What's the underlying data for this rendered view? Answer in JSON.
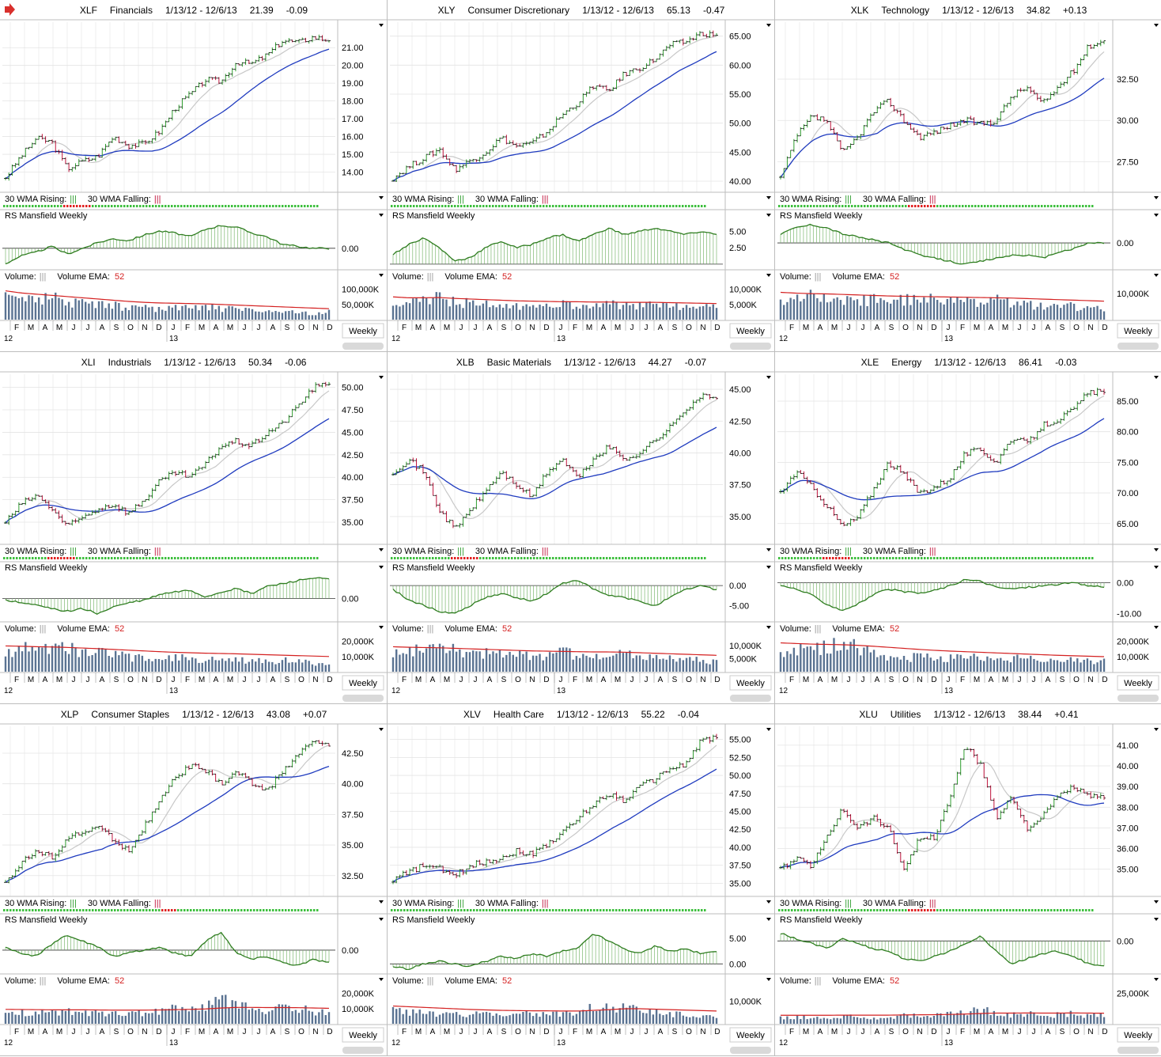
{
  "common": {
    "date_range": "1/13/12 - 12/6/13",
    "wma_rising_label": "30 WMA Rising:",
    "wma_falling_label": "30 WMA Falling:",
    "wma_marker": "|||",
    "rs_label": "RS Mansfield Weekly",
    "volume_label": "Volume:",
    "volume_marker": "|||",
    "volume_ema_label": "Volume EMA:",
    "volume_ema_value": "52",
    "period_button": "Weekly",
    "month_ticks": [
      "F",
      "M",
      "A",
      "M",
      "J",
      "J",
      "A",
      "S",
      "O",
      "N",
      "D",
      "J",
      "F",
      "M",
      "A",
      "M",
      "J",
      "J",
      "A",
      "S",
      "O",
      "N",
      "D"
    ],
    "year_labels": [
      "12",
      "13"
    ],
    "colors": {
      "up": "#2e9d2e",
      "down": "#c0143c",
      "rs": "#2e7d1f",
      "volume": "#5a7392",
      "ema": "#d42020",
      "wma30": "#1f3bbf",
      "wma10": "#c8c8c8",
      "grid": "#e4e4e4",
      "panel_border": "#bdbdbd",
      "alert_arrow": "#d9302c"
    }
  },
  "chart_data": [
    {
      "type": "line",
      "ticker": "XLF",
      "name": "Financials",
      "last": "21.39",
      "change": "-0.09",
      "alert_arrow": true,
      "price": [
        13.7,
        14.9,
        15.9,
        15.7,
        14.2,
        14.6,
        14.9,
        16.0,
        15.5,
        15.6,
        16.3,
        17.6,
        18.4,
        19.2,
        19.1,
        20.2,
        20.1,
        20.6,
        21.4,
        21.3,
        21.6,
        21.39
      ],
      "price_ticks": [
        "14.00",
        "15.00",
        "16.00",
        "17.00",
        "18.00",
        "19.00",
        "20.00",
        "21.00"
      ],
      "price_range": [
        13.0,
        22.3
      ],
      "rs": [
        -8.0,
        -4.0,
        -2.0,
        1.0,
        -3.0,
        0.0,
        3.0,
        5.0,
        4.0,
        7.0,
        9.0,
        8.0,
        6.0,
        10.0,
        12.0,
        11.0,
        8.0,
        6.0,
        2.0,
        1.0,
        0.0,
        0.0
      ],
      "rs_ticks": [
        "0.00"
      ],
      "rs_range": [
        -10.0,
        14.0
      ],
      "volume": [
        85,
        95,
        80,
        90,
        70,
        75,
        60,
        55,
        50,
        45,
        40,
        45,
        50,
        55,
        45,
        40,
        35,
        35,
        30,
        28,
        25,
        30
      ],
      "volume_ticks": [
        "50,000K",
        "100,000K"
      ],
      "volume_range": [
        0,
        120
      ],
      "ema": [
        95,
        88,
        84,
        80,
        76,
        72,
        68,
        64,
        60,
        57,
        55,
        54,
        53,
        52,
        50,
        48,
        46,
        44,
        42,
        40,
        38,
        36
      ],
      "wma": [
        1,
        1,
        1,
        1,
        0,
        0,
        1,
        1,
        1,
        1,
        1,
        1,
        1,
        1,
        1,
        1,
        1,
        1,
        1,
        1,
        1,
        1
      ]
    },
    {
      "type": "line",
      "ticker": "XLY",
      "name": "Consumer Discretionary",
      "last": "65.13",
      "change": "-0.47",
      "price": [
        40.5,
        42.5,
        44.0,
        45.5,
        42.0,
        43.5,
        45.0,
        47.5,
        46.0,
        46.5,
        48.5,
        51.5,
        53.5,
        56.5,
        55.5,
        58.5,
        59.5,
        61.0,
        63.5,
        64.0,
        65.5,
        65.13
      ],
      "price_ticks": [
        "40.00",
        "45.00",
        "50.00",
        "55.00",
        "60.00",
        "65.00"
      ],
      "price_range": [
        38.5,
        67.0
      ],
      "rs": [
        1.5,
        3.0,
        4.0,
        2.5,
        0.5,
        1.0,
        2.5,
        3.5,
        2.5,
        3.0,
        4.0,
        4.5,
        3.5,
        4.5,
        5.5,
        4.5,
        5.0,
        5.5,
        5.0,
        4.5,
        5.0,
        4.5
      ],
      "rs_ticks": [
        "2.50",
        "5.00"
      ],
      "rs_range": [
        -0.5,
        6.5
      ],
      "volume": [
        5.0,
        6.5,
        8.0,
        9.0,
        7.0,
        6.5,
        6.0,
        5.5,
        5.0,
        5.5,
        5.0,
        6.0,
        5.5,
        5.0,
        6.0,
        5.5,
        6.0,
        5.5,
        5.0,
        5.5,
        5.0,
        4.5
      ],
      "volume_ticks": [
        "5,000K",
        "10,000K"
      ],
      "volume_range": [
        0,
        12
      ],
      "ema": [
        7.5,
        7.2,
        7.2,
        7.3,
        7.0,
        6.8,
        6.6,
        6.4,
        6.2,
        6.1,
        6.0,
        5.9,
        5.9,
        5.8,
        5.8,
        5.7,
        5.7,
        5.7,
        5.6,
        5.5,
        5.4,
        5.3
      ],
      "wma": [
        1,
        1,
        1,
        1,
        1,
        1,
        1,
        1,
        1,
        1,
        1,
        1,
        1,
        1,
        1,
        1,
        1,
        1,
        1,
        1,
        1,
        1
      ]
    },
    {
      "type": "line",
      "ticker": "XLK",
      "name": "Technology",
      "last": "34.82",
      "change": "+0.13",
      "price": [
        26.5,
        29.0,
        30.2,
        30.0,
        28.0,
        29.0,
        30.5,
        31.2,
        30.0,
        29.0,
        29.3,
        29.7,
        30.0,
        29.8,
        30.0,
        31.5,
        32.0,
        31.0,
        32.0,
        33.0,
        34.5,
        34.82
      ],
      "price_ticks": [
        "27.50",
        "30.00",
        "32.50"
      ],
      "price_range": [
        25.8,
        35.8
      ],
      "rs": [
        1.5,
        2.5,
        3.0,
        2.5,
        1.5,
        1.0,
        0.5,
        0.0,
        -1.0,
        -2.0,
        -2.5,
        -3.0,
        -3.5,
        -3.0,
        -2.5,
        -2.0,
        -2.0,
        -2.5,
        -1.5,
        -1.0,
        0.0,
        0.0
      ],
      "rs_ticks": [
        "0.00"
      ],
      "rs_range": [
        -4.0,
        3.5
      ],
      "volume": [
        10,
        11,
        12,
        11,
        10,
        9,
        9,
        8,
        9,
        10,
        9,
        8,
        9,
        8,
        9,
        8,
        7,
        6,
        7,
        6,
        5,
        5
      ],
      "volume_ticks": [
        "10,000K"
      ],
      "volume_range": [
        0,
        14
      ],
      "ema": [
        10.5,
        10.2,
        10.0,
        9.9,
        9.7,
        9.5,
        9.3,
        9.1,
        9.0,
        8.9,
        8.8,
        8.7,
        8.6,
        8.5,
        8.4,
        8.3,
        8.1,
        7.9,
        7.7,
        7.5,
        7.3,
        7.1
      ],
      "wma": [
        1,
        1,
        1,
        1,
        1,
        1,
        1,
        1,
        1,
        0,
        0,
        1,
        1,
        1,
        1,
        1,
        1,
        1,
        1,
        1,
        1,
        1
      ]
    },
    {
      "type": "line",
      "ticker": "XLI",
      "name": "Industrials",
      "last": "50.34",
      "change": "-0.06",
      "price": [
        35.0,
        37.0,
        38.0,
        36.5,
        34.5,
        35.5,
        36.5,
        37.0,
        36.0,
        37.5,
        39.5,
        40.5,
        40.0,
        41.5,
        43.5,
        44.0,
        43.5,
        45.0,
        46.0,
        48.0,
        50.0,
        50.34
      ],
      "price_ticks": [
        "35.00",
        "37.50",
        "40.00",
        "42.50",
        "45.00",
        "47.50",
        "50.00"
      ],
      "price_range": [
        32.8,
        51.2
      ],
      "rs": [
        -0.2,
        -0.5,
        -0.8,
        -1.2,
        -1.5,
        -1.2,
        -1.8,
        -1.0,
        -0.5,
        -0.2,
        0.5,
        0.8,
        1.0,
        0.2,
        0.8,
        1.2,
        0.6,
        1.5,
        1.8,
        2.2,
        2.5,
        2.3
      ],
      "rs_ticks": [
        "0.00"
      ],
      "rs_range": [
        -2.5,
        3.0
      ],
      "volume": [
        16,
        18,
        20,
        19,
        18,
        17,
        15,
        13,
        12,
        11,
        10,
        11,
        10,
        9,
        11,
        10,
        9,
        8,
        9,
        8,
        7,
        7
      ],
      "volume_ticks": [
        "10,000K",
        "20,000K"
      ],
      "volume_range": [
        0,
        24
      ],
      "ema": [
        17,
        16.8,
        16.5,
        16.3,
        16.0,
        15.6,
        15.2,
        14.7,
        14.2,
        13.7,
        13.2,
        12.8,
        12.5,
        12.2,
        12.0,
        11.8,
        11.5,
        11.2,
        10.9,
        10.6,
        10.3,
        10.0
      ],
      "wma": [
        1,
        1,
        1,
        0,
        0,
        1,
        1,
        1,
        1,
        1,
        1,
        1,
        1,
        1,
        1,
        1,
        1,
        1,
        1,
        1,
        1,
        1
      ]
    },
    {
      "type": "line",
      "ticker": "XLB",
      "name": "Basic Materials",
      "last": "44.27",
      "change": "-0.07",
      "price": [
        38.5,
        39.5,
        38.5,
        35.5,
        34.0,
        35.5,
        37.0,
        38.5,
        37.5,
        36.5,
        38.5,
        39.5,
        38.0,
        39.5,
        40.5,
        39.5,
        40.0,
        41.0,
        42.0,
        43.5,
        44.5,
        44.27
      ],
      "price_ticks": [
        "35.00",
        "37.50",
        "40.00",
        "42.50",
        "45.00"
      ],
      "price_range": [
        33.0,
        46.0
      ],
      "rs": [
        -1.0,
        -3.5,
        -5.0,
        -6.5,
        -7.0,
        -5.0,
        -3.0,
        -2.0,
        -3.0,
        -4.0,
        -2.0,
        0.5,
        1.5,
        -1.0,
        -2.5,
        -3.0,
        -4.0,
        -5.0,
        -3.0,
        -1.0,
        0.0,
        -1.0
      ],
      "rs_ticks": [
        "0.00",
        "-5.00"
      ],
      "rs_range": [
        -8.5,
        3.0
      ],
      "volume": [
        9,
        10,
        11,
        12,
        10,
        9,
        9,
        8,
        8,
        7,
        8,
        9,
        8,
        7,
        10,
        8,
        7,
        6,
        7,
        6,
        5,
        5
      ],
      "volume_ticks": [
        "5,000K",
        "10,000K"
      ],
      "volume_range": [
        0,
        14
      ],
      "ema": [
        9.6,
        9.4,
        9.3,
        9.2,
        9.0,
        8.8,
        8.6,
        8.4,
        8.2,
        8.0,
        7.9,
        7.8,
        7.7,
        7.6,
        7.6,
        7.5,
        7.3,
        7.1,
        6.9,
        6.7,
        6.5,
        6.3
      ],
      "wma": [
        1,
        1,
        1,
        1,
        0,
        0,
        1,
        1,
        1,
        1,
        1,
        1,
        1,
        1,
        1,
        1,
        1,
        1,
        1,
        1,
        1,
        1
      ]
    },
    {
      "type": "line",
      "ticker": "XLE",
      "name": "Energy",
      "last": "86.41",
      "change": "-0.03",
      "price": [
        70.0,
        73.5,
        71.0,
        68.0,
        64.5,
        66.0,
        70.5,
        75.0,
        73.0,
        70.0,
        71.0,
        72.5,
        76.5,
        77.0,
        75.0,
        79.0,
        78.0,
        81.0,
        82.0,
        83.5,
        86.5,
        86.41
      ],
      "price_ticks": [
        "65.00",
        "70.00",
        "75.00",
        "80.00",
        "85.00"
      ],
      "price_range": [
        62.0,
        89.0
      ],
      "rs": [
        -1.0,
        -2.0,
        -4.0,
        -7.0,
        -9.0,
        -7.0,
        -4.0,
        -2.0,
        -3.0,
        -3.5,
        -2.5,
        -1.0,
        1.0,
        0.5,
        -1.5,
        -2.0,
        -1.5,
        -1.0,
        -0.5,
        0.0,
        -1.0,
        -1.2
      ],
      "rs_ticks": [
        "0.00",
        "-10.00"
      ],
      "rs_range": [
        -12.0,
        3.0
      ],
      "volume": [
        17,
        16,
        18,
        20,
        22,
        19,
        15,
        13,
        12,
        11,
        12,
        11,
        12,
        11,
        10,
        11,
        10,
        9,
        8,
        9,
        8,
        8
      ],
      "volume_ticks": [
        "10,000K",
        "20,000K"
      ],
      "volume_range": [
        0,
        24
      ],
      "ema": [
        19,
        18.6,
        18.2,
        18.0,
        17.8,
        17.4,
        16.8,
        16.1,
        15.4,
        14.7,
        14.1,
        13.6,
        13.2,
        12.8,
        12.4,
        12.0,
        11.6,
        11.2,
        10.8,
        10.5,
        10.2,
        9.9
      ],
      "wma": [
        1,
        1,
        1,
        0,
        0,
        1,
        1,
        1,
        1,
        1,
        1,
        1,
        1,
        1,
        1,
        1,
        1,
        1,
        1,
        1,
        1,
        1
      ]
    },
    {
      "type": "line",
      "ticker": "XLP",
      "name": "Consumer Staples",
      "last": "43.08",
      "change": "+0.07",
      "price": [
        32.0,
        33.5,
        34.5,
        34.0,
        35.5,
        36.0,
        36.5,
        35.5,
        34.5,
        36.5,
        38.5,
        40.5,
        41.5,
        41.0,
        40.0,
        41.0,
        40.0,
        39.5,
        41.0,
        42.5,
        43.5,
        43.08
      ],
      "price_ticks": [
        "32.50",
        "35.00",
        "37.50",
        "40.00",
        "42.50"
      ],
      "price_range": [
        31.0,
        44.5
      ],
      "rs": [
        0.5,
        -0.5,
        -1.0,
        1.0,
        2.5,
        1.5,
        0.5,
        -1.0,
        -0.5,
        0.0,
        0.5,
        -0.5,
        -1.0,
        1.5,
        3.0,
        -0.5,
        -1.5,
        -1.0,
        -2.0,
        -2.5,
        -1.5,
        -2.0
      ],
      "rs_ticks": [
        "0.00"
      ],
      "rs_range": [
        -3.5,
        4.0
      ],
      "volume": [
        8,
        9,
        8,
        9,
        10,
        9,
        8,
        8,
        9,
        8,
        10,
        12,
        11,
        13,
        18,
        16,
        12,
        11,
        13,
        12,
        10,
        9
      ],
      "volume_ticks": [
        "10,000K",
        "20,000K"
      ],
      "volume_range": [
        0,
        24
      ],
      "ema": [
        9.5,
        9.4,
        9.3,
        9.2,
        9.2,
        9.2,
        9.1,
        9.0,
        9.0,
        9.0,
        9.1,
        9.3,
        9.5,
        9.8,
        10.4,
        10.8,
        10.8,
        10.7,
        10.7,
        10.6,
        10.4,
        10.2
      ],
      "wma": [
        1,
        1,
        1,
        1,
        1,
        1,
        1,
        1,
        1,
        1,
        1,
        0,
        1,
        1,
        1,
        1,
        1,
        1,
        1,
        1,
        1,
        1
      ]
    },
    {
      "type": "line",
      "ticker": "XLV",
      "name": "Health Care",
      "last": "55.22",
      "change": "-0.04",
      "price": [
        35.5,
        36.5,
        37.5,
        37.0,
        36.0,
        37.5,
        38.0,
        38.5,
        39.5,
        39.0,
        40.5,
        42.0,
        44.0,
        46.0,
        47.5,
        46.5,
        48.5,
        49.5,
        51.0,
        51.5,
        55.0,
        55.22
      ],
      "price_ticks": [
        "35.00",
        "37.50",
        "40.00",
        "42.50",
        "45.00",
        "47.50",
        "50.00",
        "52.50",
        "55.00"
      ],
      "price_range": [
        33.5,
        56.5
      ],
      "rs": [
        -0.5,
        -1.0,
        0.0,
        0.5,
        0.0,
        -0.5,
        0.5,
        1.5,
        1.0,
        2.0,
        1.5,
        2.5,
        3.0,
        6.0,
        4.5,
        3.0,
        2.0,
        3.5,
        2.5,
        3.0,
        2.0,
        2.5
      ],
      "rs_ticks": [
        "0.00",
        "5.00"
      ],
      "rs_range": [
        -1.5,
        7.5
      ],
      "volume": [
        7,
        6,
        6,
        5,
        5,
        5,
        6,
        5,
        6,
        5,
        6,
        5,
        6,
        9,
        8,
        10,
        7,
        6,
        5,
        5,
        4,
        4
      ],
      "volume_ticks": [
        "10,000K"
      ],
      "volume_range": [
        0,
        16
      ],
      "ema": [
        7.8,
        7.5,
        7.2,
        6.9,
        6.6,
        6.3,
        6.1,
        5.9,
        5.8,
        5.7,
        5.7,
        5.6,
        5.6,
        5.9,
        6.2,
        6.6,
        6.6,
        6.4,
        6.2,
        6.0,
        5.8,
        5.6
      ],
      "wma": [
        1,
        1,
        1,
        1,
        1,
        1,
        1,
        1,
        1,
        1,
        1,
        1,
        1,
        1,
        1,
        1,
        1,
        1,
        1,
        1,
        1,
        1
      ]
    },
    {
      "type": "line",
      "ticker": "XLU",
      "name": "Utilities",
      "last": "38.44",
      "change": "+0.41",
      "price": [
        35.0,
        35.5,
        35.2,
        36.5,
        38.0,
        37.0,
        37.5,
        37.0,
        35.0,
        36.5,
        36.5,
        38.5,
        41.0,
        40.0,
        37.5,
        38.5,
        37.0,
        37.5,
        38.5,
        39.0,
        38.5,
        38.44
      ],
      "price_ticks": [
        "35.00",
        "36.00",
        "37.00",
        "38.00",
        "39.00",
        "40.00",
        "41.00"
      ],
      "price_range": [
        33.8,
        41.8
      ],
      "rs": [
        1.5,
        0.5,
        -0.5,
        -1.5,
        0.5,
        -0.5,
        -1.5,
        -2.0,
        -3.5,
        -4.0,
        -3.0,
        -2.0,
        -0.5,
        1.0,
        -2.0,
        -4.5,
        -3.5,
        -2.5,
        -2.0,
        -3.0,
        -4.5,
        -5.0
      ],
      "rs_ticks": [
        "0.00"
      ],
      "rs_range": [
        -6.0,
        3.0
      ],
      "volume": [
        6,
        6,
        7,
        6,
        8,
        7,
        6,
        6,
        9,
        8,
        8,
        10,
        11,
        14,
        11,
        9,
        10,
        8,
        9,
        10,
        8,
        8
      ],
      "volume_ticks": [
        "25,000K"
      ],
      "volume_range": [
        0,
        30
      ],
      "ema": [
        7.0,
        7.0,
        7.0,
        7.0,
        7.1,
        7.1,
        7.1,
        7.1,
        7.3,
        7.4,
        7.5,
        7.7,
        8.0,
        8.5,
        8.8,
        8.8,
        8.9,
        8.8,
        8.8,
        8.9,
        8.8,
        8.7
      ],
      "wma": [
        1,
        1,
        1,
        1,
        1,
        1,
        1,
        1,
        1,
        0,
        0,
        1,
        1,
        1,
        1,
        1,
        1,
        1,
        1,
        1,
        1,
        1
      ]
    }
  ]
}
